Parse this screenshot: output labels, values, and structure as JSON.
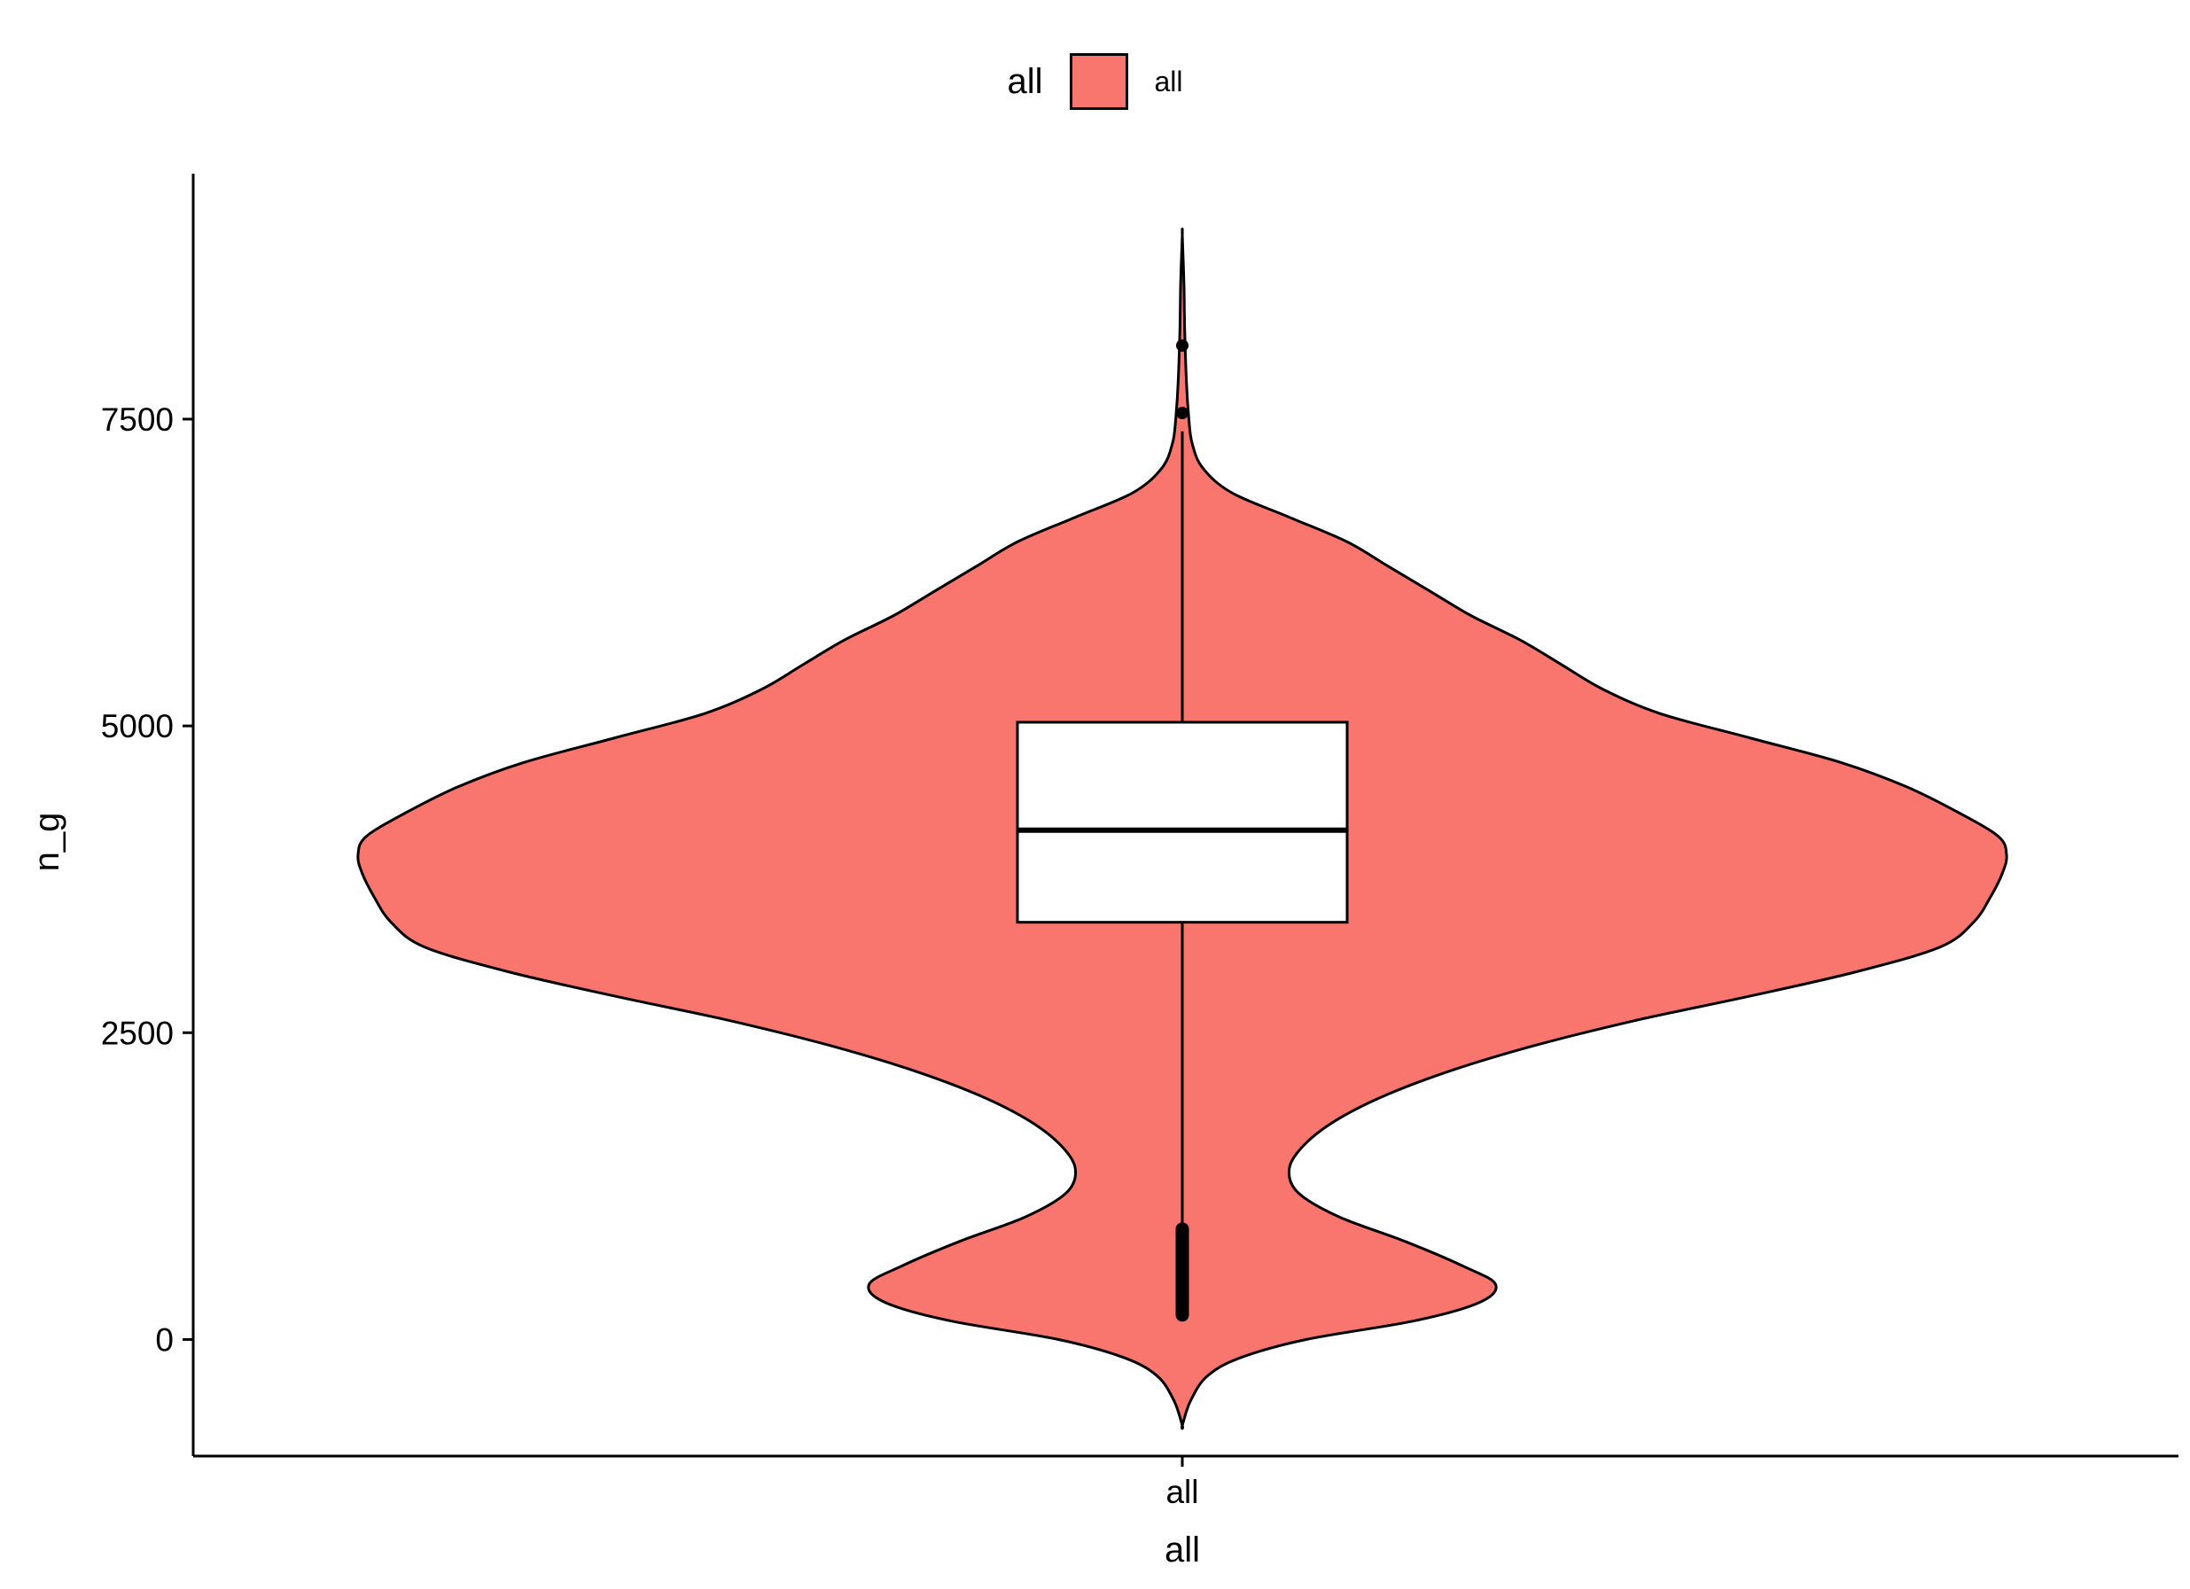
{
  "chart_data": {
    "type": "violin",
    "legend": {
      "title": "all",
      "entries": [
        {
          "label": "all",
          "color": "#F8766D"
        }
      ],
      "position": "top"
    },
    "xlabel": "all",
    "ylabel": "n_g",
    "categories": [
      "all"
    ],
    "ylim": [
      -950,
      9500
    ],
    "yticks": [
      0,
      2500,
      5000,
      7500
    ],
    "yticklabels": [
      "0",
      "2500",
      "5000",
      "7500"
    ],
    "fill_color": "#F8766D",
    "box_color": "#ffffff",
    "line_color": "#000000",
    "box": {
      "q1": 3400,
      "median": 4150,
      "q3": 5030,
      "whisker_low": 230,
      "whisker_high": 7400
    },
    "outliers_high": [
      7550,
      8100
    ],
    "outliers_low_range": [
      200,
      900
    ],
    "violin_density": [
      [
        -700,
        0.0
      ],
      [
        -500,
        0.01
      ],
      [
        -300,
        0.03
      ],
      [
        -150,
        0.07
      ],
      [
        0,
        0.15
      ],
      [
        150,
        0.28
      ],
      [
        300,
        0.36
      ],
      [
        450,
        0.38
      ],
      [
        600,
        0.34
      ],
      [
        800,
        0.27
      ],
      [
        1000,
        0.19
      ],
      [
        1200,
        0.14
      ],
      [
        1400,
        0.13
      ],
      [
        1600,
        0.15
      ],
      [
        1800,
        0.19
      ],
      [
        2000,
        0.25
      ],
      [
        2200,
        0.33
      ],
      [
        2400,
        0.43
      ],
      [
        2600,
        0.55
      ],
      [
        2800,
        0.69
      ],
      [
        3000,
        0.82
      ],
      [
        3200,
        0.92
      ],
      [
        3400,
        0.96
      ],
      [
        3600,
        0.98
      ],
      [
        3800,
        0.995
      ],
      [
        3950,
        1.0
      ],
      [
        4100,
        0.99
      ],
      [
        4300,
        0.94
      ],
      [
        4500,
        0.88
      ],
      [
        4700,
        0.8
      ],
      [
        4900,
        0.69
      ],
      [
        5100,
        0.58
      ],
      [
        5300,
        0.51
      ],
      [
        5500,
        0.46
      ],
      [
        5700,
        0.41
      ],
      [
        5900,
        0.35
      ],
      [
        6100,
        0.3
      ],
      [
        6300,
        0.25
      ],
      [
        6500,
        0.2
      ],
      [
        6700,
        0.13
      ],
      [
        6900,
        0.06
      ],
      [
        7100,
        0.025
      ],
      [
        7300,
        0.012
      ],
      [
        7500,
        0.008
      ],
      [
        7800,
        0.005
      ],
      [
        8200,
        0.003
      ],
      [
        8600,
        0.002
      ],
      [
        9000,
        0.0
      ]
    ]
  }
}
